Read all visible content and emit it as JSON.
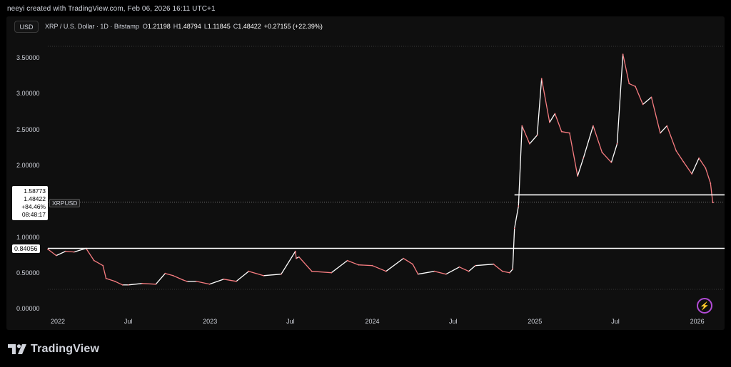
{
  "attribution": "neeyi created with TradingView.com, Feb 06, 2026 16:11 UTC+1",
  "currency": "USD",
  "symbol": {
    "title": "XRP / U.S. Dollar · 1D · Bitstamp",
    "o_label": "O",
    "o_value": "1.21198",
    "h_label": "H",
    "h_value": "1.48794",
    "l_label": "L",
    "l_value": "1.11845",
    "c_label": "C",
    "c_value": "1.48422",
    "change": "+0.27155 (+22.39%)"
  },
  "legend": {
    "high_tag": "1.58773",
    "last_price": "1.48422",
    "change_pct": "+84.46%",
    "countdown": "08:48:17",
    "symbol_tag": "XRPUSD",
    "line_tag": "0.84056"
  },
  "brand": {
    "name": "TradingView",
    "icon": "tradingview-logo-icon"
  },
  "watermark_icon": "lightning-bolt-icon",
  "colors": {
    "bear": "#f77c80",
    "bull": "#ffffff",
    "background": "#0f0f0f",
    "hline": "#ffffff"
  },
  "chart_data": {
    "type": "line",
    "title": "XRP / U.S. Dollar · 1D · Bitstamp",
    "y_ticks": [
      "3.50000",
      "3.00000",
      "2.50000",
      "2.00000",
      "1.00000",
      "0.50000",
      "0.00000"
    ],
    "y_tick_values": [
      3.5,
      3.0,
      2.5,
      2.0,
      1.0,
      0.5,
      0.0
    ],
    "x_ticks": [
      "2022",
      "Jul",
      "2023",
      "Jul",
      "2024",
      "Jul",
      "2025",
      "Jul",
      "2026"
    ],
    "x_tick_dates": [
      "2022-01-01",
      "2022-07-01",
      "2023-01-01",
      "2023-07-01",
      "2024-01-01",
      "2024-07-01",
      "2025-01-01",
      "2025-07-01",
      "2026-01-01"
    ],
    "ylim": [
      0,
      3.7
    ],
    "xlim": [
      "2022-01-01",
      "2026-02-06"
    ],
    "horizontal_lines": [
      {
        "value": 1.58773,
        "from": "2024-11-16"
      },
      {
        "value": 0.84056,
        "from": "2022-01-01"
      }
    ],
    "series": [
      {
        "x": [
          "2022-01-01",
          "2022-01-20",
          "2022-02-10",
          "2022-03-01",
          "2022-03-28",
          "2022-04-15",
          "2022-05-05",
          "2022-05-12",
          "2022-06-01",
          "2022-06-18",
          "2022-07-01",
          "2022-08-01",
          "2022-09-01",
          "2022-09-22",
          "2022-10-10",
          "2022-11-01",
          "2022-11-10",
          "2022-12-01",
          "2022-12-31",
          "2023-02-01",
          "2023-03-01",
          "2023-03-29",
          "2023-05-01",
          "2023-06-10",
          "2023-07-12",
          "2023-07-14",
          "2023-07-20",
          "2023-08-18",
          "2023-10-01",
          "2023-11-06",
          "2023-12-01",
          "2024-01-01",
          "2024-02-01",
          "2024-03-11",
          "2024-04-01",
          "2024-04-13",
          "2024-05-20",
          "2024-06-15",
          "2024-07-15",
          "2024-08-05",
          "2024-08-20",
          "2024-09-30",
          "2024-10-20",
          "2024-11-05",
          "2024-11-12",
          "2024-11-16",
          "2024-11-25",
          "2024-12-03",
          "2024-12-20",
          "2025-01-06",
          "2025-01-16",
          "2025-02-03",
          "2025-02-15",
          "2025-03-02",
          "2025-03-20",
          "2025-04-07",
          "2025-04-20",
          "2025-05-12",
          "2025-06-01",
          "2025-06-22",
          "2025-07-05",
          "2025-07-18",
          "2025-08-01",
          "2025-08-15",
          "2025-09-01",
          "2025-09-20",
          "2025-10-10",
          "2025-10-25",
          "2025-11-15",
          "2025-12-01",
          "2025-12-20",
          "2026-01-05",
          "2026-01-20",
          "2026-01-31",
          "2026-02-05",
          "2026-02-06"
        ],
        "y": [
          0.83,
          0.74,
          0.8,
          0.79,
          0.84,
          0.67,
          0.6,
          0.42,
          0.38,
          0.33,
          0.33,
          0.35,
          0.34,
          0.49,
          0.46,
          0.4,
          0.38,
          0.38,
          0.34,
          0.41,
          0.38,
          0.52,
          0.46,
          0.48,
          0.8,
          0.7,
          0.72,
          0.52,
          0.5,
          0.67,
          0.61,
          0.6,
          0.52,
          0.7,
          0.62,
          0.48,
          0.52,
          0.48,
          0.58,
          0.52,
          0.6,
          0.62,
          0.52,
          0.5,
          0.55,
          1.12,
          1.43,
          2.55,
          2.3,
          2.42,
          3.21,
          2.6,
          2.72,
          2.47,
          2.45,
          1.85,
          2.1,
          2.55,
          2.18,
          2.04,
          2.3,
          3.55,
          3.14,
          3.1,
          2.85,
          2.95,
          2.45,
          2.55,
          2.2,
          2.05,
          1.88,
          2.1,
          1.96,
          1.75,
          1.48,
          1.48
        ]
      }
    ]
  }
}
